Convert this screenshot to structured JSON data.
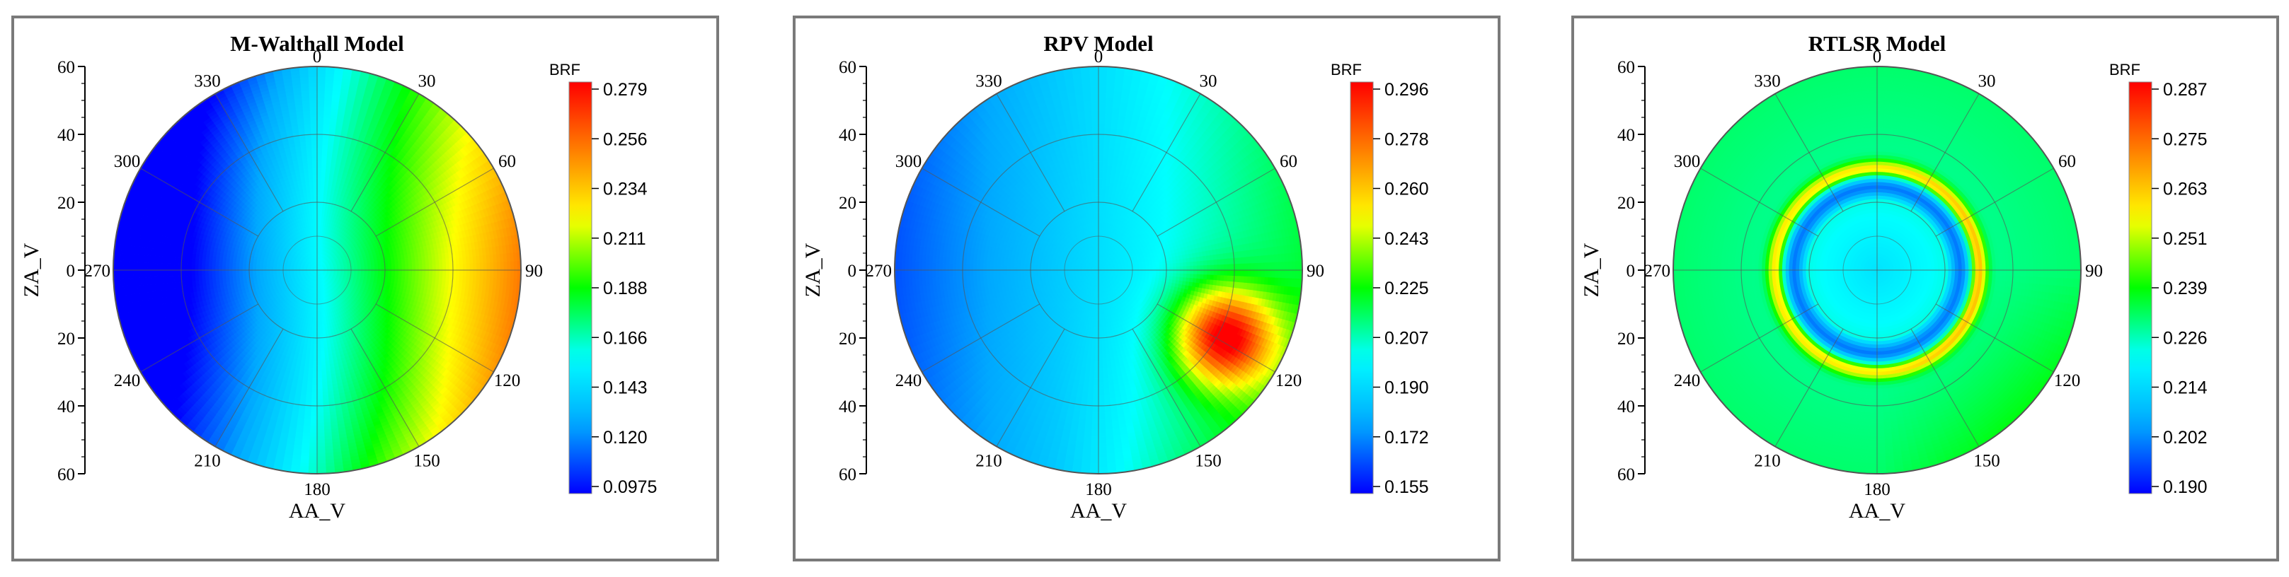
{
  "colors": {
    "scale": [
      "#0000ff",
      "#00a8ff",
      "#00ffff",
      "#00ff00",
      "#ffff00",
      "#ff8000",
      "#ff0000"
    ],
    "grid": "#555555",
    "frame": "#7a7a7a"
  },
  "chart_data": [
    {
      "type": "polar-contour",
      "title": "M-Walthall Model",
      "xlabel": "AA_V",
      "ylabel": "ZA_V",
      "colorbar_label": "BRF",
      "colorbar_ticks": [
        "0.279",
        "0.256",
        "0.234",
        "0.211",
        "0.188",
        "0.166",
        "0.143",
        "0.120",
        "0.0975"
      ],
      "value_range": [
        0.0975,
        0.279
      ],
      "angle_labels": [
        "0",
        "30",
        "60",
        "90",
        "120",
        "150",
        "180",
        "210",
        "240",
        "270",
        "300",
        "330"
      ],
      "za_ticks": [
        "60",
        "40",
        "20",
        "0",
        "20",
        "40",
        "60"
      ],
      "za_max": 60
    },
    {
      "type": "polar-contour",
      "title": "RPV Model",
      "xlabel": "AA_V",
      "ylabel": "ZA_V",
      "colorbar_label": "BRF",
      "colorbar_ticks": [
        "0.296",
        "0.278",
        "0.260",
        "0.243",
        "0.225",
        "0.207",
        "0.190",
        "0.172",
        "0.155"
      ],
      "value_range": [
        0.155,
        0.296
      ],
      "angle_labels": [
        "0",
        "30",
        "60",
        "90",
        "120",
        "150",
        "180",
        "210",
        "240",
        "270",
        "300",
        "330"
      ],
      "za_ticks": [
        "60",
        "40",
        "20",
        "0",
        "20",
        "40",
        "60"
      ],
      "za_max": 60
    },
    {
      "type": "polar-contour",
      "title": "RTLSR Model",
      "xlabel": "AA_V",
      "ylabel": "ZA_V",
      "colorbar_label": "BRF",
      "colorbar_ticks": [
        "0.287",
        "0.275",
        "0.263",
        "0.251",
        "0.239",
        "0.226",
        "0.214",
        "0.202",
        "0.190"
      ],
      "value_range": [
        0.19,
        0.287
      ],
      "angle_labels": [
        "0",
        "30",
        "60",
        "90",
        "120",
        "150",
        "180",
        "210",
        "240",
        "270",
        "300",
        "330"
      ],
      "za_ticks": [
        "60",
        "40",
        "20",
        "0",
        "20",
        "40",
        "60"
      ],
      "za_max": 60
    }
  ]
}
